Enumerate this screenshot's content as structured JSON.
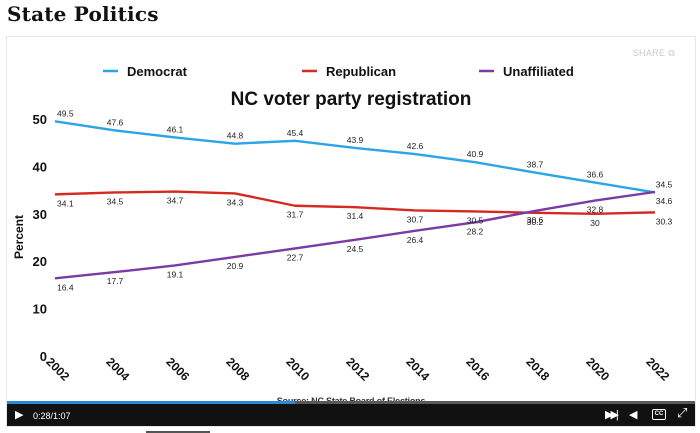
{
  "page": {
    "section_title": "State Politics"
  },
  "player": {
    "share_label": "SHARE",
    "time_label": "0:28/1:07",
    "progress": 0.418,
    "icons": [
      "play-icon",
      "skip-icon",
      "volume-icon",
      "captions-icon",
      "fullscreen-icon"
    ],
    "cc_label": "CC"
  },
  "chart_data": {
    "type": "line",
    "title": "NC voter party registration",
    "ylabel": "Percent",
    "xlabel": "",
    "source": "Source: NC State Board of Elections",
    "x": [
      "2002",
      "2004",
      "2006",
      "2008",
      "2010",
      "2012",
      "2014",
      "2016",
      "2018",
      "2020",
      "2022"
    ],
    "ylim": [
      0,
      50
    ],
    "yticks": [
      0,
      10,
      20,
      30,
      40,
      50
    ],
    "grid": false,
    "legend_position": "top",
    "series": [
      {
        "name": "Democrat",
        "color": "#2da4e6",
        "values": [
          49.5,
          47.6,
          46.1,
          44.8,
          45.4,
          43.9,
          42.6,
          40.9,
          38.7,
          36.6,
          34.5
        ]
      },
      {
        "name": "Republican",
        "color": "#d42a20",
        "values": [
          34.1,
          34.5,
          34.7,
          34.3,
          31.7,
          31.4,
          30.7,
          30.5,
          30.2,
          30.0,
          30.3
        ]
      },
      {
        "name": "Unaffiliated",
        "color": "#7b3ba6",
        "values": [
          16.4,
          17.7,
          19.1,
          20.9,
          22.7,
          24.5,
          26.4,
          28.2,
          30.6,
          32.8,
          34.6
        ]
      }
    ]
  }
}
